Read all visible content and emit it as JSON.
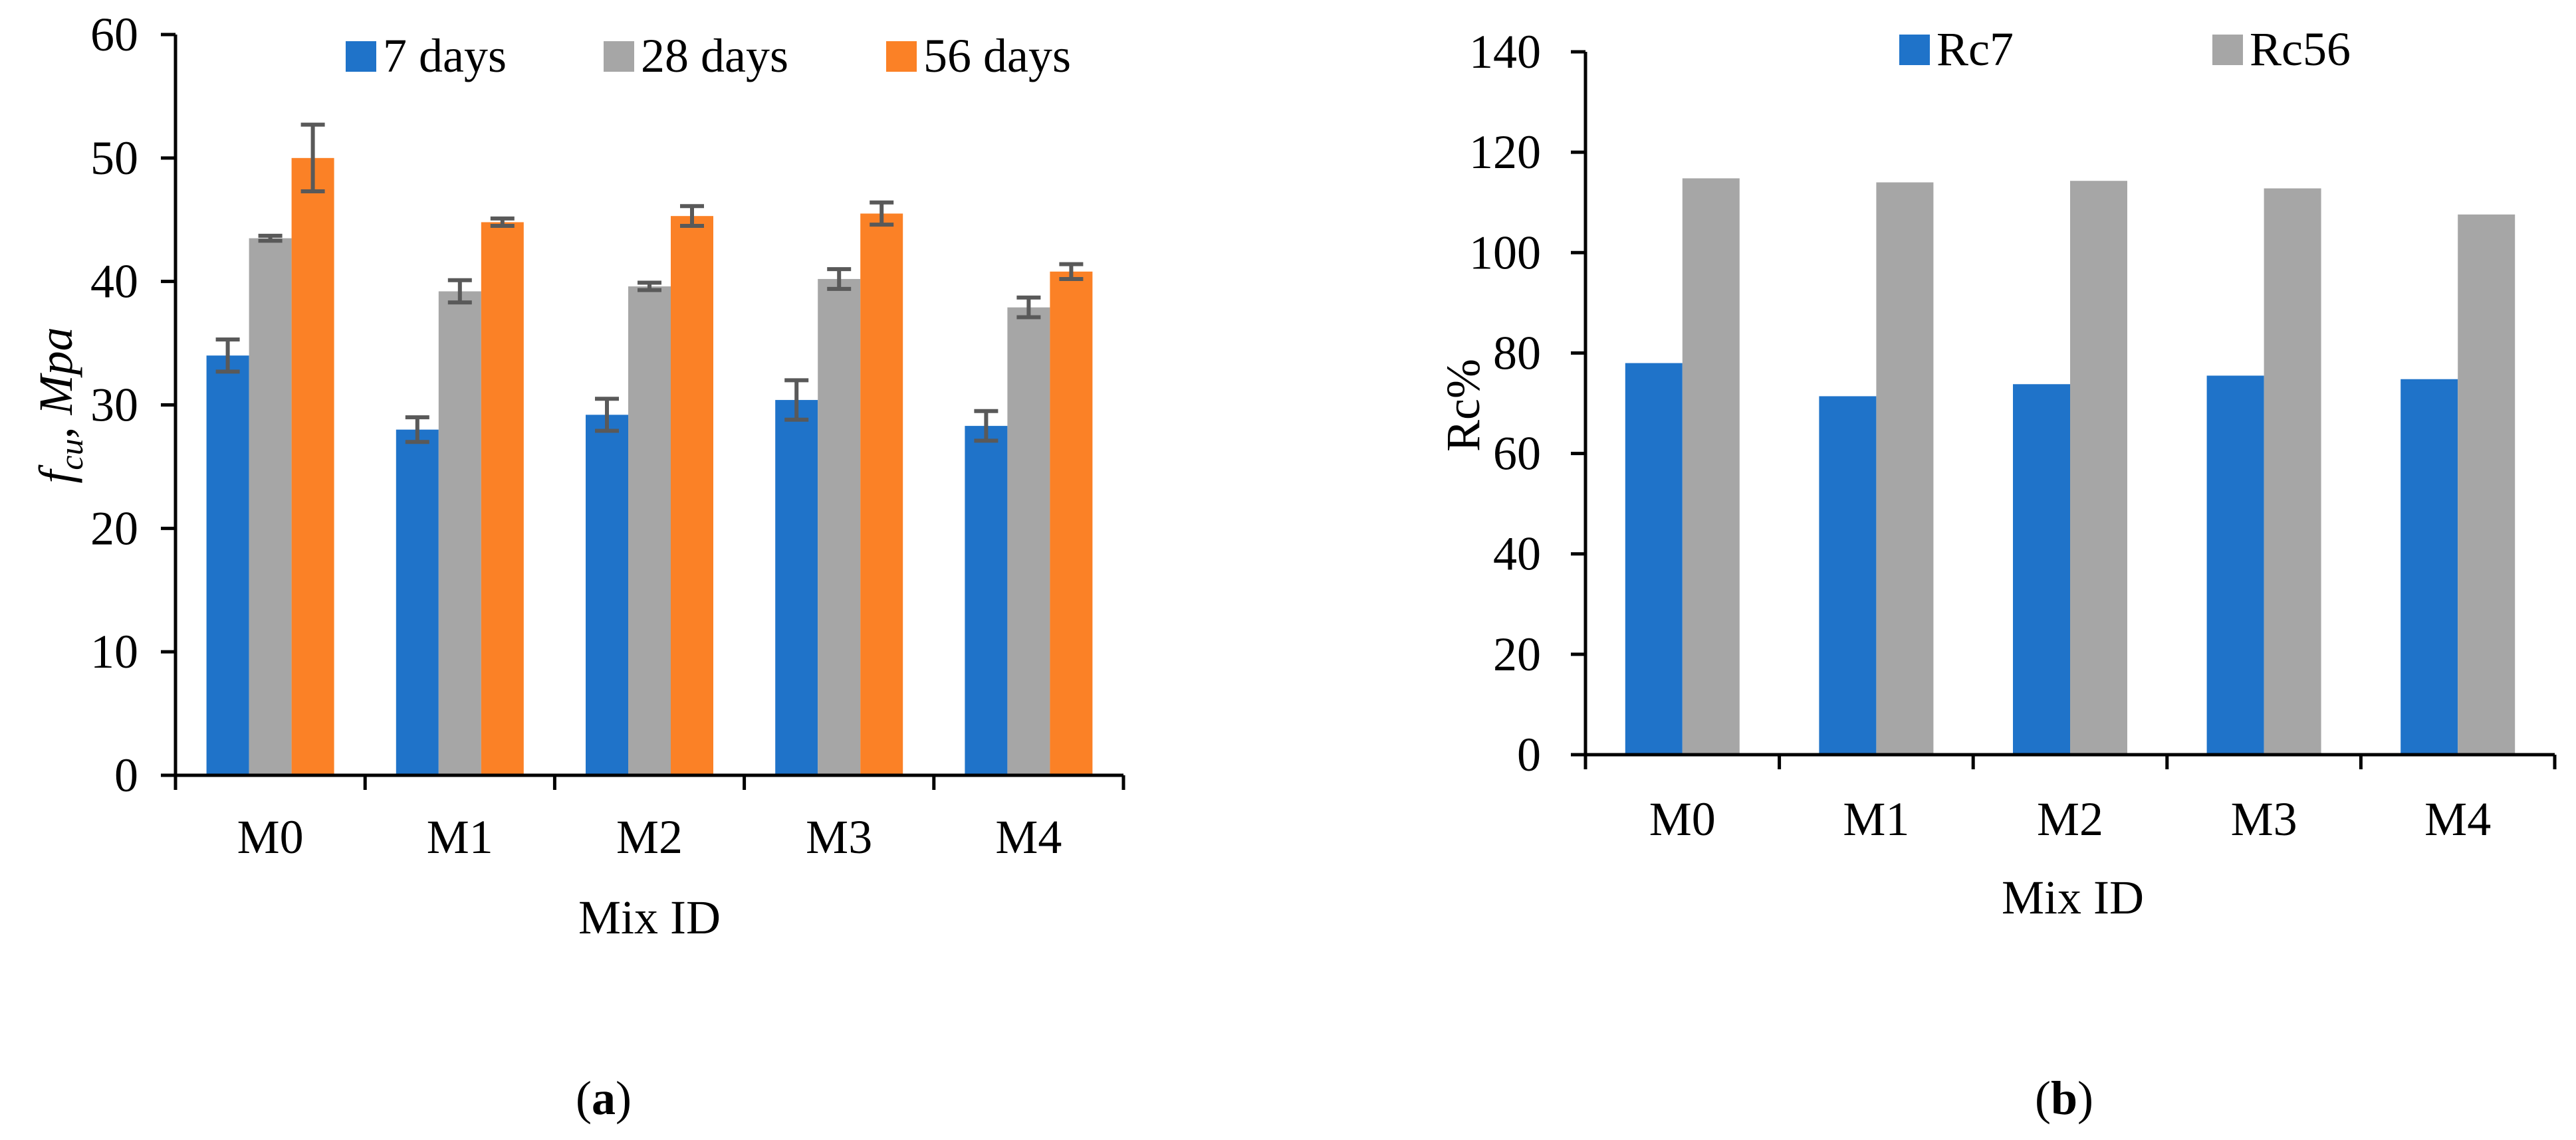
{
  "chart_data": [
    {
      "id": "a",
      "type": "bar",
      "panel_label": "a",
      "categories": [
        "M0",
        "M1",
        "M2",
        "M3",
        "M4"
      ],
      "series": [
        {
          "name": "7 days",
          "color": "#1f73c9",
          "values": [
            34.0,
            28.0,
            29.2,
            30.4,
            28.3
          ],
          "errors": [
            1.3,
            1.0,
            1.3,
            1.6,
            1.2
          ]
        },
        {
          "name": "28 days",
          "color": "#a6a6a6",
          "values": [
            43.5,
            39.2,
            39.6,
            40.2,
            37.9
          ],
          "errors": [
            0.2,
            0.9,
            0.3,
            0.8,
            0.8
          ]
        },
        {
          "name": "56 days",
          "color": "#fb8126",
          "values": [
            50.0,
            44.8,
            45.3,
            45.5,
            40.8
          ],
          "errors": [
            2.7,
            0.3,
            0.8,
            0.9,
            0.6
          ]
        }
      ],
      "xlabel": "Mix ID",
      "ylabel": {
        "main": "f",
        "sub": "cu",
        "sep": ", ",
        "unit": "Mpa"
      },
      "ylim": [
        0,
        60
      ],
      "yticks": [
        "0",
        "10",
        "20",
        "30",
        "40",
        "50",
        "60"
      ],
      "legend_position": "top"
    },
    {
      "id": "b",
      "type": "bar",
      "panel_label": "b",
      "categories": [
        "M0",
        "M1",
        "M2",
        "M3",
        "M4"
      ],
      "series": [
        {
          "name": "Rc7",
          "color": "#1f73c9",
          "values": [
            78.0,
            71.4,
            73.8,
            75.5,
            74.8
          ]
        },
        {
          "name": "Rc56",
          "color": "#a6a6a6",
          "values": [
            114.8,
            114.0,
            114.3,
            112.8,
            107.6
          ]
        }
      ],
      "xlabel": "Mix ID",
      "ylabel": "Rc%",
      "ylim": [
        0,
        140
      ],
      "yticks": [
        "0",
        "20",
        "40",
        "60",
        "80",
        "100",
        "120",
        "140"
      ],
      "legend_position": "top"
    }
  ]
}
